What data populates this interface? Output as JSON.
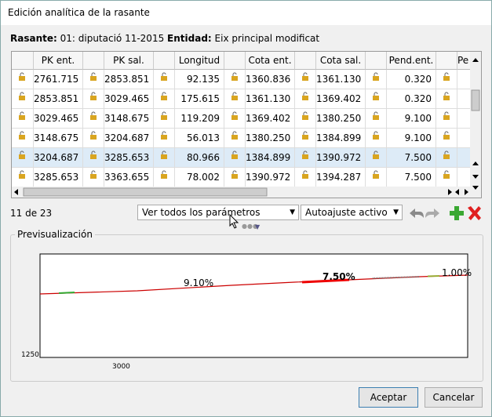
{
  "window": {
    "title": "Edición analítica de la rasante"
  },
  "info": {
    "rasante_label": "Rasante:",
    "rasante_value": "01: diputació 11-2015",
    "entidad_label": "Entidad:",
    "entidad_value": "Eix principal modificat"
  },
  "table": {
    "headers": [
      "PK ent.",
      "PK sal.",
      "Longitud",
      "Cota ent.",
      "Cota sal.",
      "Pend.ent.",
      "Pe"
    ],
    "selected_row": 4,
    "rows": [
      [
        "2761.715",
        "2853.851",
        "92.135",
        "1360.836",
        "1361.130",
        "0.320"
      ],
      [
        "2853.851",
        "3029.465",
        "175.615",
        "1361.130",
        "1369.402",
        "0.320"
      ],
      [
        "3029.465",
        "3148.675",
        "119.209",
        "1369.402",
        "1380.250",
        "9.100"
      ],
      [
        "3148.675",
        "3204.687",
        "56.013",
        "1380.250",
        "1384.899",
        "9.100"
      ],
      [
        "3204.687",
        "3285.653",
        "80.966",
        "1384.899",
        "1390.972",
        "7.500"
      ],
      [
        "3285.653",
        "3363.655",
        "78.002",
        "1390.972",
        "1394.287",
        "7.500"
      ]
    ]
  },
  "toolbar": {
    "counter": "11 de 23",
    "filter": "Ver todos los parámetros",
    "autofit": "Autoajuste activo"
  },
  "preview": {
    "title": "Previsualización",
    "y_label": "1250",
    "x_label": "3000",
    "slopes": [
      "9.10%",
      "7.50%",
      "1.00%"
    ]
  },
  "buttons": {
    "accept": "Aceptar",
    "cancel": "Cancelar"
  }
}
